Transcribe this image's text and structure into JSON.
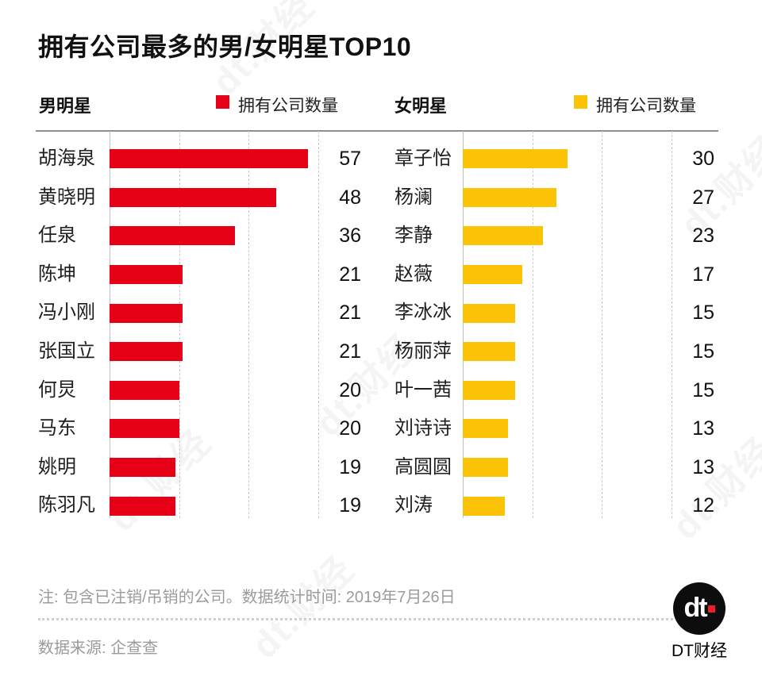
{
  "title": "拥有公司最多的男/女明星TOP10",
  "watermark": "dt.财经",
  "colors": {
    "male_bar": "#E60015",
    "female_bar": "#FCC306",
    "logo_dot": "#E8222D"
  },
  "panels": [
    {
      "legend_title": "男明星",
      "legend_label": "拥有公司数量",
      "color": "#E60015",
      "axis_max": 60,
      "rows": [
        {
          "name": "胡海泉",
          "value": 57
        },
        {
          "name": "黄晓明",
          "value": 48
        },
        {
          "name": "任泉",
          "value": 36
        },
        {
          "name": "陈坤",
          "value": 21
        },
        {
          "name": "冯小刚",
          "value": 21
        },
        {
          "name": "张国立",
          "value": 21
        },
        {
          "name": "何炅",
          "value": 20
        },
        {
          "name": "马东",
          "value": 20
        },
        {
          "name": "姚明",
          "value": 19
        },
        {
          "name": "陈羽凡",
          "value": 19
        }
      ]
    },
    {
      "legend_title": "女明星",
      "legend_label": "拥有公司数量",
      "color": "#FCC306",
      "axis_max": 60,
      "rows": [
        {
          "name": "章子怡",
          "value": 30
        },
        {
          "name": "杨澜",
          "value": 27
        },
        {
          "name": "李静",
          "value": 23
        },
        {
          "name": "赵薇",
          "value": 17
        },
        {
          "name": "李冰冰",
          "value": 15
        },
        {
          "name": "杨丽萍",
          "value": 15
        },
        {
          "name": "叶一茜",
          "value": 15
        },
        {
          "name": "刘诗诗",
          "value": 13
        },
        {
          "name": "高圆圆",
          "value": 13
        },
        {
          "name": "刘涛",
          "value": 12
        }
      ]
    }
  ],
  "footer": {
    "note": "注: 包含已注销/吊销的公司。数据统计时间: 2019年7月26日",
    "source": "数据来源: 企查查",
    "logo_text": "dt",
    "logo_caption": "DT财经"
  },
  "chart_data": [
    {
      "type": "bar",
      "orientation": "horizontal",
      "title": "男明星",
      "legend": "拥有公司数量",
      "color": "#E60015",
      "categories": [
        "胡海泉",
        "黄晓明",
        "任泉",
        "陈坤",
        "冯小刚",
        "张国立",
        "何炅",
        "马东",
        "姚明",
        "陈羽凡"
      ],
      "values": [
        57,
        48,
        36,
        21,
        21,
        21,
        20,
        20,
        19,
        19
      ],
      "xlim": [
        0,
        60
      ],
      "gridlines": [
        0,
        20,
        40,
        60
      ],
      "grid": "dashed-vertical",
      "legend_position": "top"
    },
    {
      "type": "bar",
      "orientation": "horizontal",
      "title": "女明星",
      "legend": "拥有公司数量",
      "color": "#FCC306",
      "categories": [
        "章子怡",
        "杨澜",
        "李静",
        "赵薇",
        "李冰冰",
        "杨丽萍",
        "叶一茜",
        "刘诗诗",
        "高圆圆",
        "刘涛"
      ],
      "values": [
        30,
        27,
        23,
        17,
        15,
        15,
        15,
        13,
        13,
        12
      ],
      "xlim": [
        0,
        60
      ],
      "gridlines": [
        0,
        20,
        40,
        60
      ],
      "grid": "dashed-vertical",
      "legend_position": "top"
    }
  ]
}
